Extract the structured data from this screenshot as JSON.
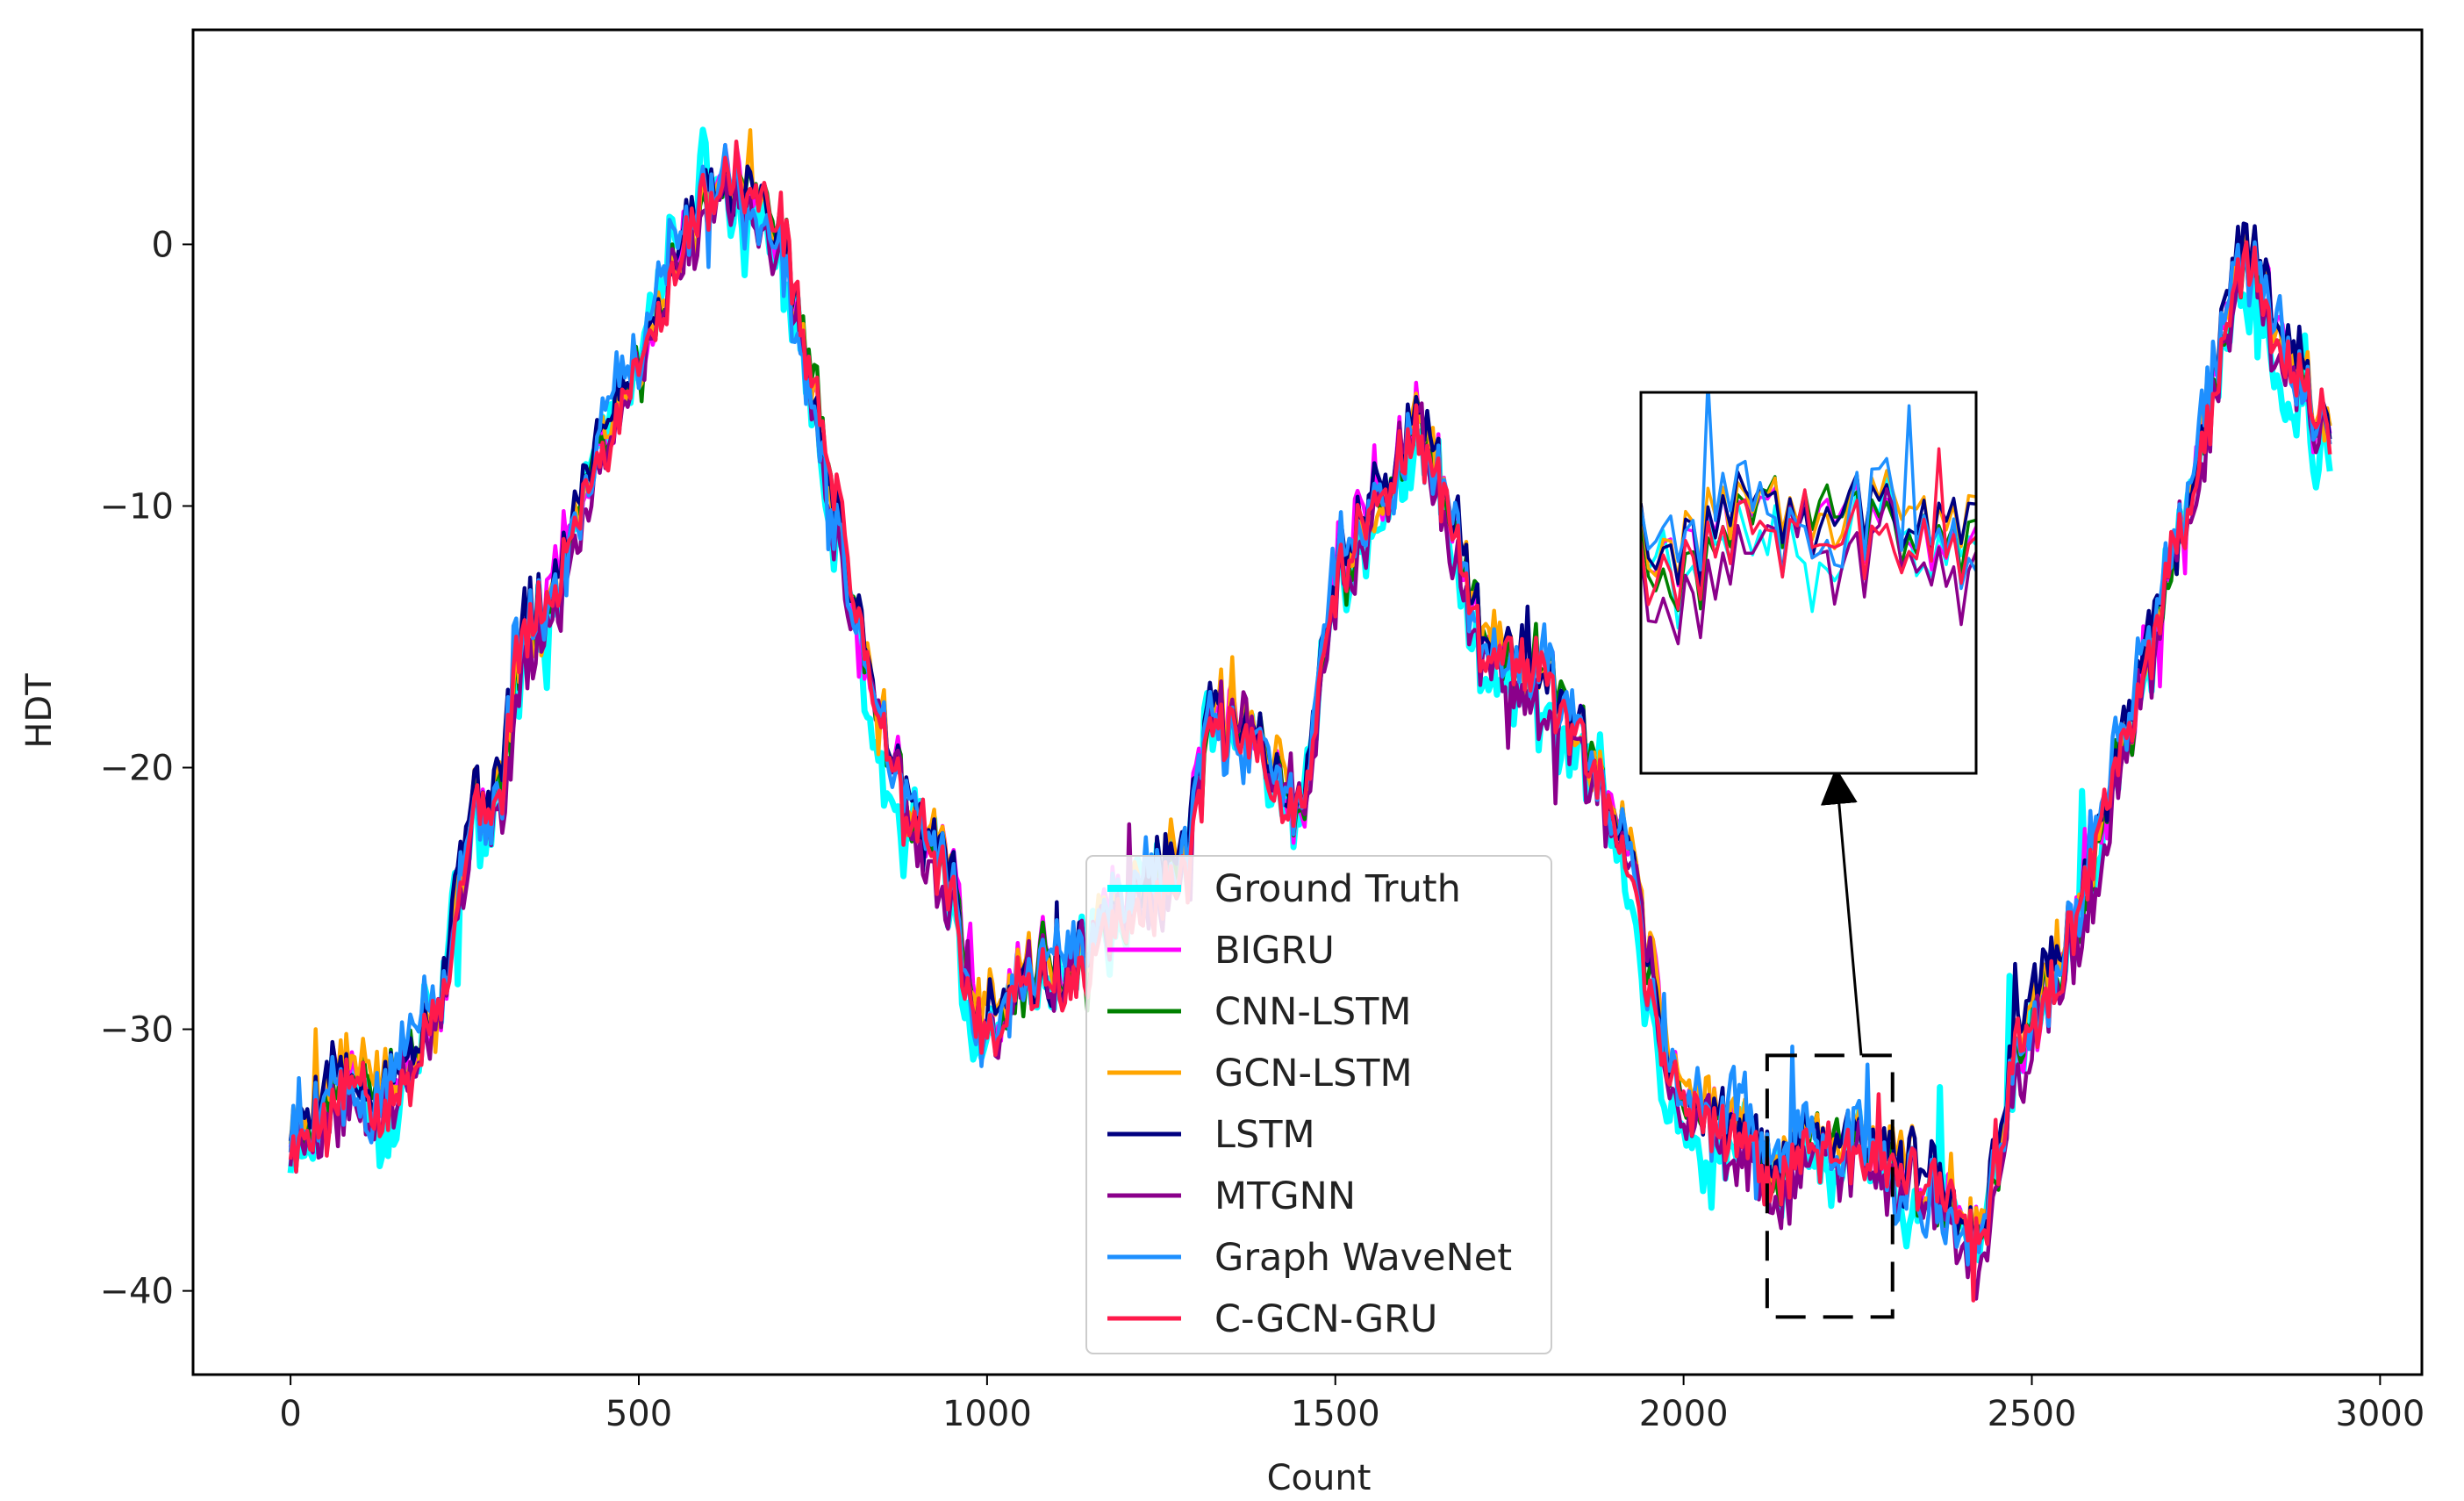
{
  "chart_data": {
    "type": "line",
    "title": "",
    "xlabel": "Count",
    "ylabel": "HDT",
    "xlim": [
      -140,
      3060
    ],
    "ylim": [
      -43.2,
      8.2
    ],
    "xticks": [
      0,
      500,
      1000,
      1500,
      2000,
      2500,
      3000
    ],
    "yticks": [
      0,
      -10,
      -20,
      -30,
      -40
    ],
    "grid": false,
    "legend_position": "lower-center",
    "series": [
      {
        "name": "Ground Truth",
        "color": "#00ffff",
        "seed": 11,
        "amp": 1.6,
        "dx": 0,
        "offset": -0.5
      },
      {
        "name": "BIGRU",
        "color": "#ff00ff",
        "seed": 23,
        "amp": 0.9,
        "dx": 4,
        "offset": 0.3
      },
      {
        "name": "CNN-LSTM",
        "color": "#008000",
        "seed": 37,
        "amp": 0.8,
        "dx": 6,
        "offset": 0.1
      },
      {
        "name": "GCN-LSTM",
        "color": "#ffa500",
        "seed": 41,
        "amp": 0.8,
        "dx": 5,
        "offset": 0.4
      },
      {
        "name": "LSTM",
        "color": "#000080",
        "seed": 53,
        "amp": 0.8,
        "dx": 3,
        "offset": 0.5
      },
      {
        "name": "MTGNN",
        "color": "#8b008b",
        "seed": 67,
        "amp": 1.1,
        "dx": 7,
        "offset": -0.4
      },
      {
        "name": "Graph WaveNet",
        "color": "#1e90ff",
        "seed": 79,
        "amp": 1.4,
        "dx": 2,
        "offset": 0.2
      },
      {
        "name": "C-GCN-GRU",
        "color": "#ff1a4b",
        "seed": 97,
        "amp": 0.9,
        "dx": 5,
        "offset": -0.2
      }
    ],
    "trend_anchors": [
      [
        0,
        -34
      ],
      [
        20,
        -33.5
      ],
      [
        60,
        -31.5
      ],
      [
        140,
        -32.5
      ],
      [
        220,
        -28
      ],
      [
        250,
        -22
      ],
      [
        300,
        -21
      ],
      [
        320,
        -16
      ],
      [
        370,
        -14
      ],
      [
        430,
        -8
      ],
      [
        520,
        -3
      ],
      [
        600,
        2.5
      ],
      [
        650,
        2
      ],
      [
        700,
        0.5
      ],
      [
        760,
        -8
      ],
      [
        820,
        -16
      ],
      [
        880,
        -22
      ],
      [
        940,
        -24
      ],
      [
        980,
        -30
      ],
      [
        1040,
        -28
      ],
      [
        1120,
        -28
      ],
      [
        1200,
        -25
      ],
      [
        1280,
        -24
      ],
      [
        1320,
        -18
      ],
      [
        1400,
        -20
      ],
      [
        1450,
        -22
      ],
      [
        1500,
        -12
      ],
      [
        1560,
        -10
      ],
      [
        1610,
        -7
      ],
      [
        1660,
        -10
      ],
      [
        1700,
        -15
      ],
      [
        1800,
        -17
      ],
      [
        1860,
        -20
      ],
      [
        1920,
        -24
      ],
      [
        1960,
        -30
      ],
      [
        2000,
        -33
      ],
      [
        2080,
        -34
      ],
      [
        2140,
        -36
      ],
      [
        2200,
        -34
      ],
      [
        2300,
        -35
      ],
      [
        2380,
        -37
      ],
      [
        2430,
        -38
      ],
      [
        2470,
        -31
      ],
      [
        2560,
        -26
      ],
      [
        2620,
        -20
      ],
      [
        2700,
        -12
      ],
      [
        2760,
        -5
      ],
      [
        2800,
        0
      ],
      [
        2830,
        -2
      ],
      [
        2880,
        -5
      ],
      [
        2930,
        -8
      ]
    ],
    "zoom_region": {
      "x": [
        2120,
        2300
      ],
      "y": [
        -41,
        -31
      ]
    }
  }
}
